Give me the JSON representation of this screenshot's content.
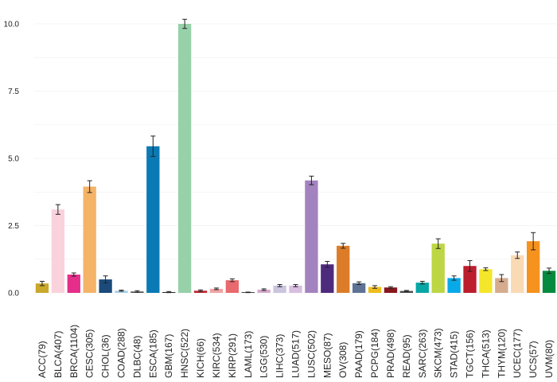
{
  "chart_data": {
    "type": "bar",
    "title": "",
    "xlabel": "",
    "ylabel": "",
    "ylim": [
      0,
      10.2
    ],
    "yticks": [
      0,
      2.5,
      5,
      7.5,
      10
    ],
    "ytick_labels": [
      "0.0",
      "2.5",
      "5.0",
      "7.5",
      "10.0"
    ],
    "grid": true,
    "categories": [
      "ACC(79)",
      "BLCA(407)",
      "BRCA(1104)",
      "CESC(305)",
      "CHOL(36)",
      "COAD(288)",
      "DLBC(48)",
      "ESCA(185)",
      "GBM(167)",
      "HNSC(522)",
      "KICH(66)",
      "KIRC(534)",
      "KIRP(291)",
      "LAML(173)",
      "LGG(530)",
      "LIHC(373)",
      "LUAD(517)",
      "LUSC(502)",
      "MESO(87)",
      "OV(308)",
      "PAAD(179)",
      "PCPG(184)",
      "PRAD(498)",
      "READ(95)",
      "SARC(263)",
      "SKCM(473)",
      "STAD(415)",
      "TGCT(156)",
      "THCA(513)",
      "THYM(120)",
      "UCEC(177)",
      "UCS(57)",
      "UVM(80)"
    ],
    "values": [
      0.35,
      3.1,
      0.68,
      3.95,
      0.5,
      0.08,
      0.05,
      5.45,
      0.03,
      10.0,
      0.08,
      0.15,
      0.47,
      0.02,
      0.12,
      0.27,
      0.27,
      4.18,
      1.06,
      1.75,
      0.36,
      0.22,
      0.2,
      0.07,
      0.38,
      1.83,
      0.55,
      1.0,
      0.88,
      0.55,
      1.4,
      1.92,
      0.82
    ],
    "errors": [
      0.08,
      0.18,
      0.06,
      0.22,
      0.13,
      0.02,
      0.03,
      0.38,
      0.02,
      0.17,
      0.03,
      0.03,
      0.05,
      0.01,
      0.03,
      0.04,
      0.04,
      0.16,
      0.11,
      0.09,
      0.05,
      0.05,
      0.03,
      0.02,
      0.05,
      0.18,
      0.08,
      0.2,
      0.05,
      0.13,
      0.12,
      0.32,
      0.1
    ],
    "colors": [
      "#c9a82c",
      "#f9d2dc",
      "#e52e8a",
      "#f4b367",
      "#1b4a7b",
      "#a6d1e8",
      "#54514d",
      "#0a7ab4",
      "#2e2522",
      "#96d1a9",
      "#c8252e",
      "#f1a3a3",
      "#e8696e",
      "#151515",
      "#d6a9ce",
      "#cbc5de",
      "#d8bfe0",
      "#a383bf",
      "#4e2a7d",
      "#dd7c28",
      "#5d7295",
      "#efbe1e",
      "#86171d",
      "#4b4949",
      "#07a7a5",
      "#bdd643",
      "#09a9e8",
      "#bd1e2d",
      "#f4e62a",
      "#d5ac8e",
      "#f9dab5",
      "#f6921e",
      "#058a40"
    ]
  }
}
